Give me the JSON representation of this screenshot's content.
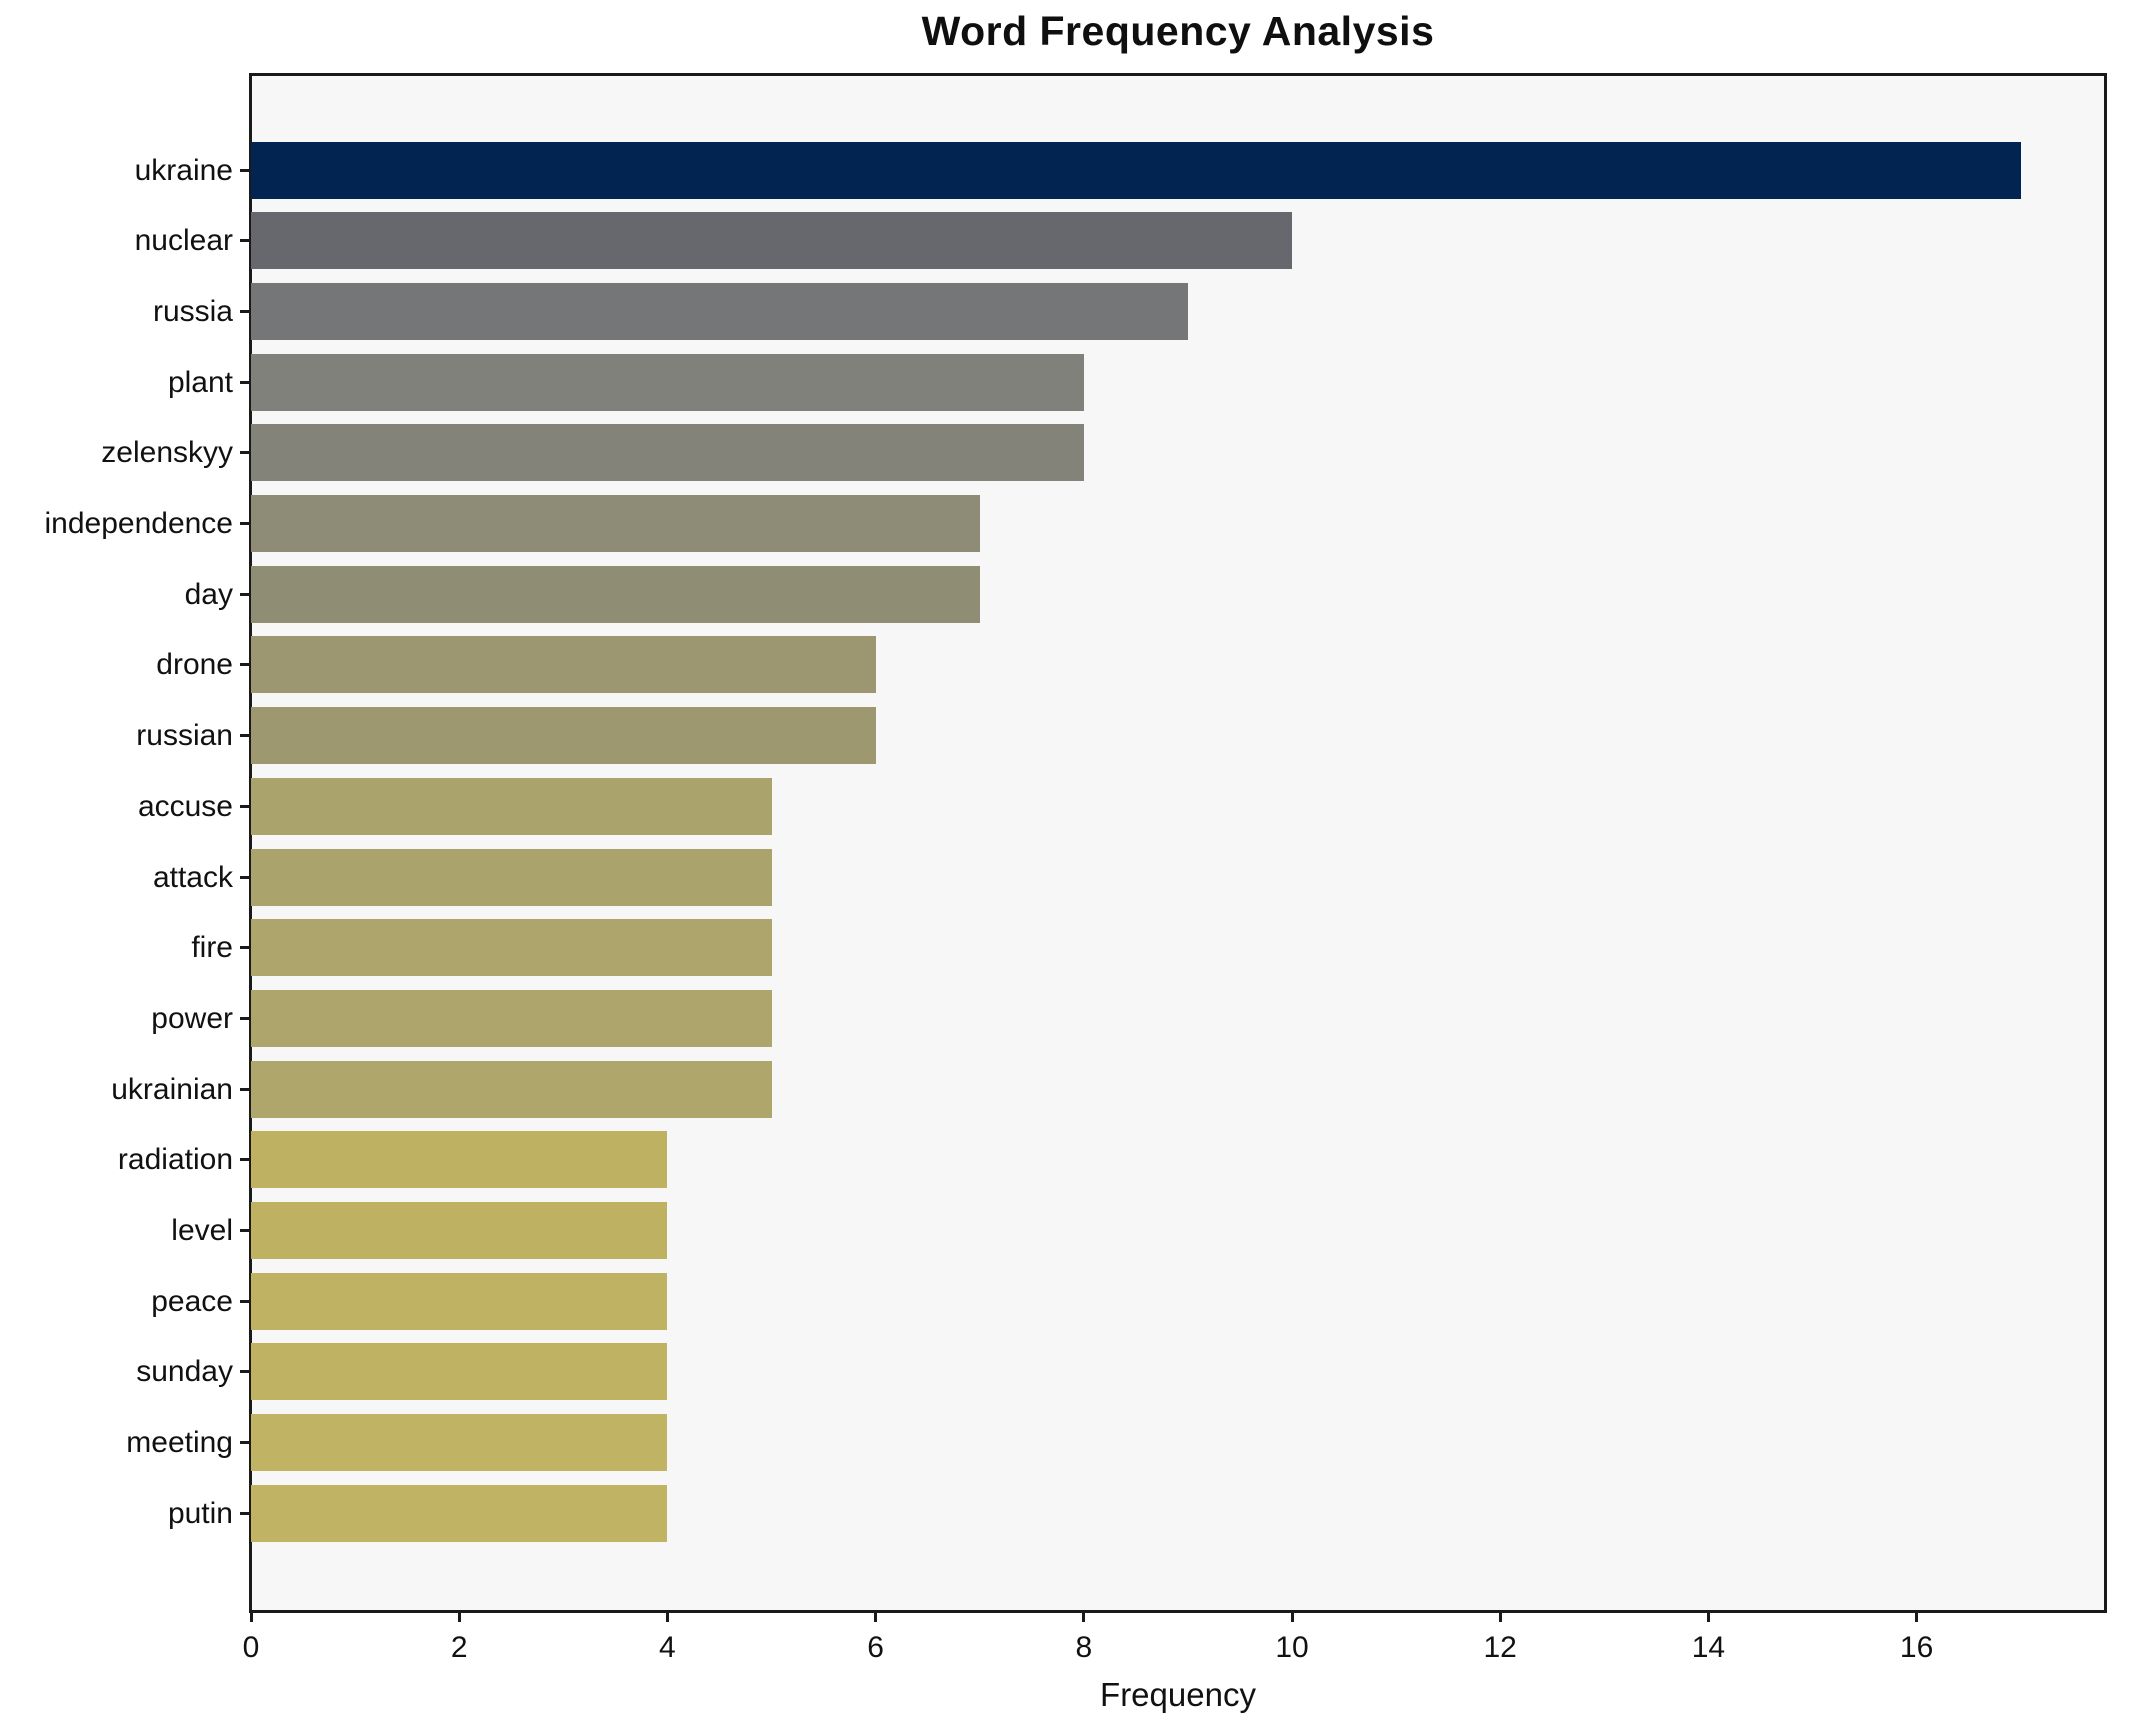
{
  "chart_data": {
    "type": "bar",
    "orientation": "horizontal",
    "title": "Word Frequency Analysis",
    "xlabel": "Frequency",
    "ylabel": "",
    "grid": false,
    "legend": false,
    "xlim": [
      0,
      17.85
    ],
    "x_ticks": [
      0,
      2,
      4,
      6,
      8,
      10,
      12,
      14,
      16
    ],
    "categories": [
      "ukraine",
      "nuclear",
      "russia",
      "plant",
      "zelenskyy",
      "independence",
      "day",
      "drone",
      "russian",
      "accuse",
      "attack",
      "fire",
      "power",
      "ukrainian",
      "radiation",
      "level",
      "peace",
      "sunday",
      "meeting",
      "putin"
    ],
    "values": [
      17,
      10,
      9,
      8,
      8,
      7,
      7,
      6,
      6,
      5,
      5,
      5,
      5,
      5,
      4,
      4,
      4,
      4,
      4,
      4
    ],
    "bar_colors": [
      "#022450",
      "#67686e",
      "#757678",
      "#81817b",
      "#83837a",
      "#8e8b76",
      "#908d75",
      "#9c9770",
      "#9e9870",
      "#aba36c",
      "#aba36c",
      "#ada56b",
      "#ada56b",
      "#aea66a",
      "#bfb162",
      "#bfb162",
      "#c0b263",
      "#c0b263",
      "#c0b364",
      "#c0b364"
    ]
  },
  "colors": {
    "figure_bg": "#ffffff",
    "plot_bg": "#f7f7f8",
    "spine": "#1a1a1a",
    "text": "#111111"
  }
}
